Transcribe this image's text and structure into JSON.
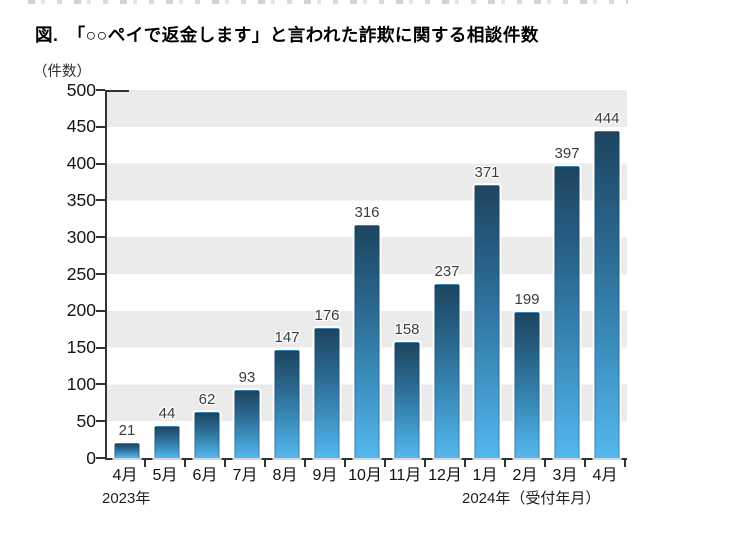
{
  "figure": {
    "title": "図.　「○○ペイで返金します」と言われた詐欺に関する相談件数",
    "unit_label": "（件数）"
  },
  "chart_data": {
    "type": "bar",
    "title": "図.　「○○ペイで返金します」と言われた詐欺に関する相談件数",
    "ylabel": "（件数）",
    "xlabel": "受付年月",
    "categories": [
      "4月",
      "5月",
      "6月",
      "7月",
      "8月",
      "9月",
      "10月",
      "11月",
      "12月",
      "1月",
      "2月",
      "3月",
      "4月"
    ],
    "values": [
      21,
      44,
      62,
      93,
      147,
      176,
      316,
      158,
      237,
      371,
      199,
      397,
      444
    ],
    "year_annotations": [
      {
        "label": "2023年",
        "category_index": 0
      },
      {
        "label": "2024年（受付年月）",
        "category_index": 9
      }
    ],
    "ylim": [
      0,
      500
    ],
    "y_ticks": [
      0,
      50,
      100,
      150,
      200,
      250,
      300,
      350,
      400,
      450,
      500
    ],
    "grid": "alternating-horizontal-bands",
    "legend": "none",
    "band_colors": [
      "#ebebeb",
      "#ffffff"
    ],
    "bar_color_top": "#1d4560",
    "bar_color_bottom": "#55b8ef",
    "value_label_color": "#3c3c3c",
    "axis_color": "#333333"
  }
}
